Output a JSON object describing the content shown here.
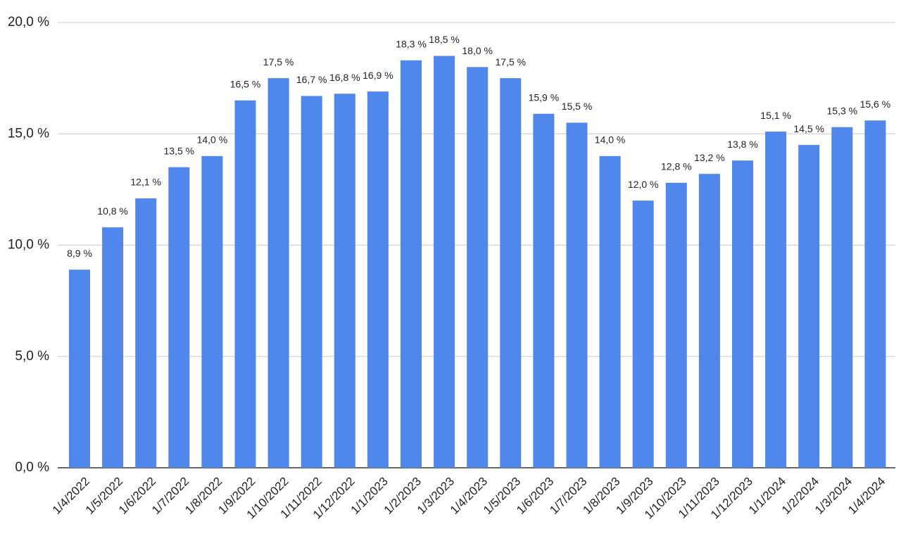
{
  "chart_data": {
    "type": "bar",
    "categories": [
      "1/4/2022",
      "1/5/2022",
      "1/6/2022",
      "1/7/2022",
      "1/8/2022",
      "1/9/2022",
      "1/10/2022",
      "1/11/2022",
      "1/12/2022",
      "1/1/2023",
      "1/2/2023",
      "1/3/2023",
      "1/4/2023",
      "1/5/2023",
      "1/6/2023",
      "1/7/2023",
      "1/8/2023",
      "1/9/2023",
      "1/10/2023",
      "1/11/2023",
      "1/12/2023",
      "1/1/2024",
      "1/2/2024",
      "1/3/2024",
      "1/4/2024"
    ],
    "values": [
      8.9,
      10.8,
      12.1,
      13.5,
      14.0,
      16.5,
      17.5,
      16.7,
      16.8,
      16.9,
      18.3,
      18.5,
      18.0,
      17.5,
      15.9,
      15.5,
      14.0,
      12.0,
      12.8,
      13.2,
      13.8,
      15.1,
      14.5,
      15.3,
      15.6
    ],
    "value_labels": [
      "8,9 %",
      "10,8 %",
      "12,1 %",
      "13,5 %",
      "14,0 %",
      "16,5 %",
      "17,5 %",
      "16,7 %",
      "16,8 %",
      "16,9 %",
      "18,3 %",
      "18,5 %",
      "18,0 %",
      "17,5 %",
      "15,9 %",
      "15,5 %",
      "14,0 %",
      "12,0 %",
      "12,8 %",
      "13,2 %",
      "13,8 %",
      "15,1 %",
      "14,5 %",
      "15,3 %",
      "15,6 %"
    ],
    "color": "#5087ec",
    "ylim": [
      0,
      20
    ],
    "yticks": [
      {
        "value": 0,
        "label": "0,0 %"
      },
      {
        "value": 5,
        "label": "5,0 %"
      },
      {
        "value": 10,
        "label": "10,0 %"
      },
      {
        "value": 15,
        "label": "15,0 %"
      },
      {
        "value": 20,
        "label": "20,0 %"
      }
    ],
    "grid": true
  }
}
